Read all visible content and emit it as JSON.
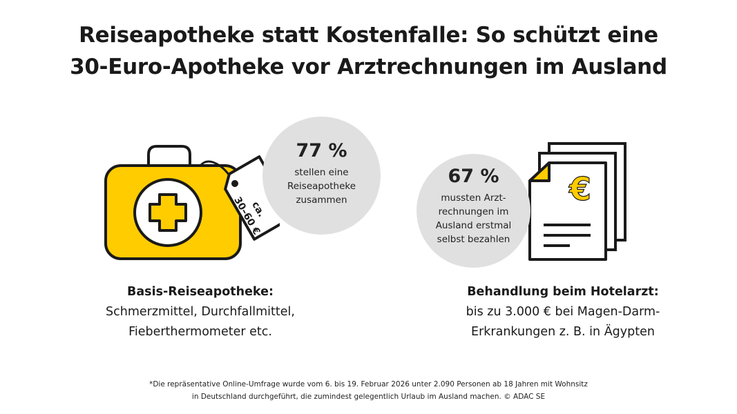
{
  "title": {
    "line1": "Reiseapotheke statt Kostenfalle: So schützt eine",
    "line2": "30-Euro-Apotheke vor Arztrechnungen im Ausland"
  },
  "left": {
    "stat": {
      "percent": "77 %",
      "text": "stellen eine\nReiseapotheke\nzusammen"
    },
    "tag_label": "ca.\n30–60 €",
    "caption": {
      "heading": "Basis-Reiseapotheke:",
      "body": "Schmerzmittel, Durchfallmittel,\nFieberthermometer etc."
    }
  },
  "right": {
    "stat": {
      "percent": "67 %",
      "text": "mussten Arzt-\nrechnungen im\nAusland erstmal\nselbst bezahlen"
    },
    "currency_symbol": "€",
    "caption": {
      "heading": "Behandlung beim Hotelarzt:",
      "body": "bis zu 3.000 € bei Magen-Darm-\nErkrankungen z. B. in Ägypten"
    }
  },
  "footnote": {
    "line1": "*Die repräsentative Online-Umfrage wurde vom 6. bis 19. Februar 2026 unter 2.090 Personen ab 18 Jahren mit Wohnsitz",
    "line2": "in Deutschland durchgeführt, die zumindest gelegentlich Urlaub im Ausland machen. © ADAC SE"
  },
  "colors": {
    "accent_yellow": "#FFCC00",
    "circle_grey": "#E0E0E0",
    "outline": "#1A1A1A"
  },
  "icons": {
    "left": "first-aid-kit-icon",
    "tag": "price-tag-icon",
    "right": "invoice-documents-icon"
  }
}
